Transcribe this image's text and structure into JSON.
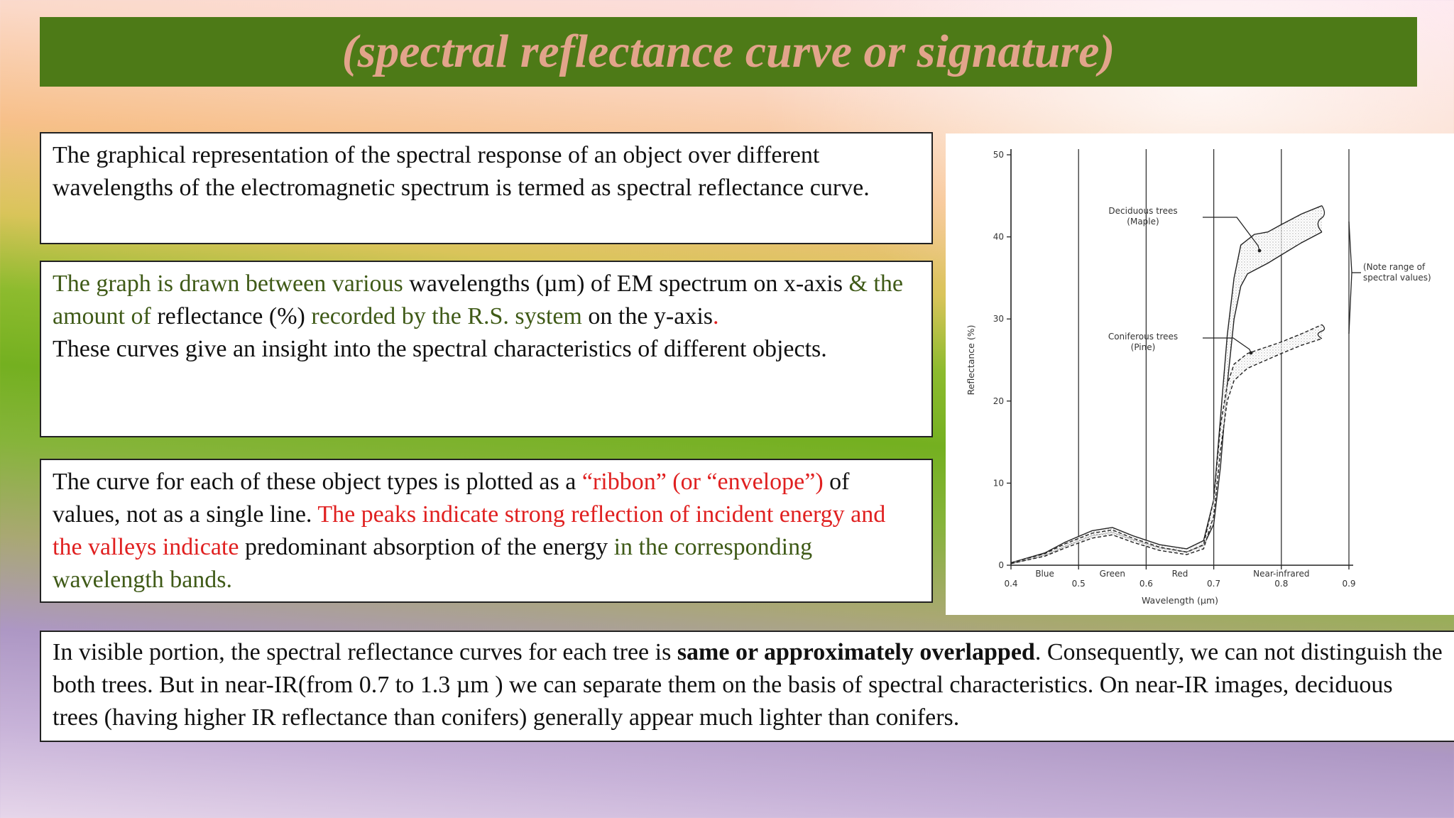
{
  "title": "(spectral reflectance curve or signature)",
  "box1": {
    "text": "The graphical representation of the spectral response of an object over different wavelengths of the electromagnetic spectrum is termed as spectral reflectance curve."
  },
  "box2": {
    "p1_a": "The graph is drawn between various",
    "p1_b": " wavelengths (µm) of EM spectrum on x-axis ",
    "p1_c": "& the amount of",
    "p1_d": " reflectance (%) ",
    "p1_e": "recorded by the R.S. system",
    "p1_f": " on the y-axis",
    "p1_g": ".",
    "p2": "These curves give an insight into the spectral characteristics of different objects."
  },
  "box3": {
    "a": "The curve for each of these object types is plotted as a ",
    "b": "“ribbon” (or “envelope”)",
    "c": " of values, not as a single line. ",
    "d": "The peaks indicate strong reflection of incident energy and the valleys indicate",
    "e": " predominant absorption of the energy ",
    "f": "in the corresponding wavelength bands."
  },
  "box4": {
    "a": " In visible portion, the spectral reflectance curves for each tree is ",
    "b": "same or approximately overlapped",
    "c": ". Consequently, we can not distinguish the both trees. But in near-IR(from 0.7 to 1.3 µm ) we can separate them on the basis of spectral characteristics. On near-IR images, deciduous trees (having higher IR reflectance than conifers) generally appear much lighter than conifers."
  },
  "chart_data": {
    "type": "line",
    "xlabel": "Wavelength (µm)",
    "ylabel": "Reflectance (%)",
    "xlim": [
      0.4,
      0.9
    ],
    "ylim": [
      0,
      50
    ],
    "xticks": [
      "0.4",
      "0.5",
      "0.6",
      "0.7",
      "0.8",
      "0.9"
    ],
    "yticks": [
      "0",
      "10",
      "20",
      "30",
      "40",
      "50"
    ],
    "band_dividers": [
      0.5,
      0.6,
      0.7,
      0.8
    ],
    "band_labels": [
      {
        "label": "Blue",
        "x": 0.45
      },
      {
        "label": "Green",
        "x": 0.55
      },
      {
        "label": "Red",
        "x": 0.65
      },
      {
        "label": "Near-infrared",
        "x": 0.8
      }
    ],
    "grid": false,
    "series": [
      {
        "name": "Deciduous trees (Maple)",
        "style": "solid",
        "upper": [
          [
            0.4,
            0.3
          ],
          [
            0.45,
            1.5
          ],
          [
            0.48,
            2.8
          ],
          [
            0.52,
            4.2
          ],
          [
            0.55,
            4.6
          ],
          [
            0.58,
            3.6
          ],
          [
            0.62,
            2.5
          ],
          [
            0.66,
            2.0
          ],
          [
            0.685,
            3.0
          ],
          [
            0.7,
            8
          ],
          [
            0.71,
            18
          ],
          [
            0.72,
            28
          ],
          [
            0.73,
            35
          ],
          [
            0.74,
            39
          ],
          [
            0.76,
            40.3
          ],
          [
            0.78,
            40.6
          ],
          [
            0.8,
            41.5
          ],
          [
            0.83,
            42.8
          ],
          [
            0.86,
            43.8
          ]
        ],
        "lower": [
          [
            0.4,
            0.2
          ],
          [
            0.45,
            1.2
          ],
          [
            0.48,
            2.3
          ],
          [
            0.52,
            3.6
          ],
          [
            0.55,
            4.0
          ],
          [
            0.58,
            3.1
          ],
          [
            0.62,
            2.1
          ],
          [
            0.66,
            1.6
          ],
          [
            0.685,
            2.4
          ],
          [
            0.7,
            5
          ],
          [
            0.71,
            12
          ],
          [
            0.72,
            22
          ],
          [
            0.73,
            30
          ],
          [
            0.74,
            34
          ],
          [
            0.75,
            35.5
          ],
          [
            0.78,
            36.8
          ],
          [
            0.8,
            37.8
          ],
          [
            0.83,
            39.3
          ],
          [
            0.86,
            40.6
          ]
        ]
      },
      {
        "name": "Coniferous trees (Pine)",
        "style": "dashed",
        "upper": [
          [
            0.4,
            0.3
          ],
          [
            0.45,
            1.4
          ],
          [
            0.48,
            2.6
          ],
          [
            0.52,
            3.9
          ],
          [
            0.55,
            4.3
          ],
          [
            0.58,
            3.3
          ],
          [
            0.62,
            2.2
          ],
          [
            0.66,
            1.6
          ],
          [
            0.685,
            2.5
          ],
          [
            0.7,
            8
          ],
          [
            0.71,
            17
          ],
          [
            0.72,
            22
          ],
          [
            0.73,
            24.5
          ],
          [
            0.75,
            25.8
          ],
          [
            0.8,
            27.2
          ],
          [
            0.83,
            28.2
          ],
          [
            0.86,
            29.3
          ]
        ],
        "lower": [
          [
            0.4,
            0.2
          ],
          [
            0.45,
            1.1
          ],
          [
            0.48,
            2.1
          ],
          [
            0.52,
            3.3
          ],
          [
            0.55,
            3.7
          ],
          [
            0.58,
            2.8
          ],
          [
            0.62,
            1.8
          ],
          [
            0.66,
            1.3
          ],
          [
            0.685,
            2.0
          ],
          [
            0.7,
            6
          ],
          [
            0.71,
            14
          ],
          [
            0.72,
            20
          ],
          [
            0.73,
            22.5
          ],
          [
            0.75,
            24
          ],
          [
            0.8,
            25.8
          ],
          [
            0.83,
            26.8
          ],
          [
            0.86,
            27.6
          ]
        ]
      }
    ],
    "annotations": [
      {
        "text": [
          "Deciduous trees",
          "(Maple)"
        ]
      },
      {
        "text": [
          "Coniferous trees",
          "(Pine)"
        ]
      },
      {
        "text": [
          "(Note range of",
          "spectral values)"
        ]
      }
    ]
  }
}
